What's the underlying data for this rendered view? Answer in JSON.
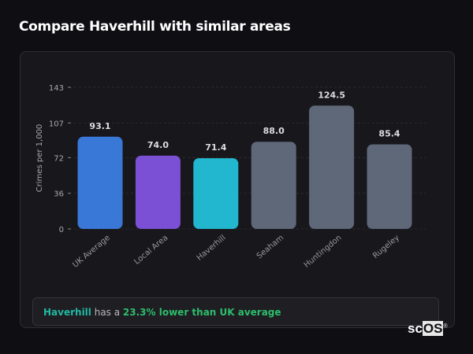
{
  "header": {
    "title": "Compare Haverhill with similar areas"
  },
  "chart_data": {
    "type": "bar",
    "categories": [
      "UK Average",
      "Local Area",
      "Haverhill",
      "Seaham",
      "Huntingdon",
      "Rugeley"
    ],
    "values": [
      93.1,
      74.0,
      71.4,
      88.0,
      124.5,
      85.4
    ],
    "labels": [
      "93.1",
      "74.0",
      "71.4",
      "88.0",
      "124.5",
      "85.4"
    ],
    "colors": [
      "#3a78d8",
      "#7b50d4",
      "#22b7cf",
      "#5e6878",
      "#5e6878",
      "#5e6878"
    ],
    "ylabel": "Crimes per 1,000",
    "yticks": [
      0,
      36,
      72,
      107,
      143
    ],
    "ylim": [
      0,
      143
    ],
    "grid": true
  },
  "summary": {
    "area": "Haverhill",
    "mid": " has a ",
    "highlight": "23.3% lower than UK average"
  },
  "logo": {
    "text": "scOS"
  }
}
